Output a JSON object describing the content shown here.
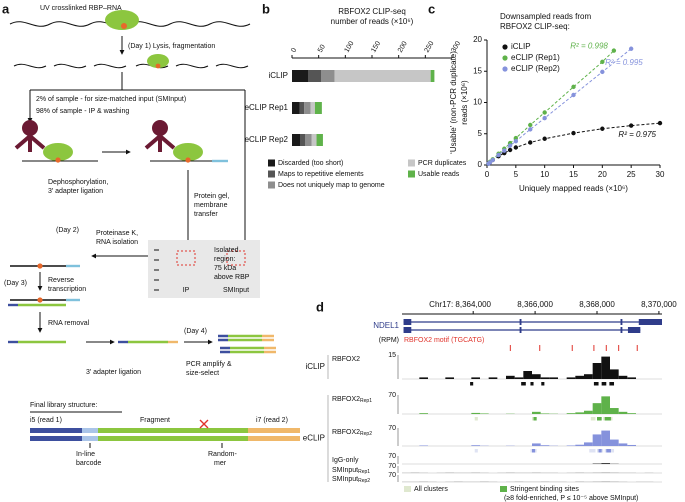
{
  "labels": {
    "a": "a",
    "b": "b",
    "c": "c",
    "d": "d"
  },
  "panel_a": {
    "uv": "UV crosslinked RBP–RNA",
    "day1": "(Day 1) Lysis, fragmentation",
    "sminput_split": "2% of sample - for size-matched input (SMInput)",
    "ip_split": "98% of sample - IP & washing",
    "dephos": [
      "Dephosphorylation,",
      "3′ adapter ligation"
    ],
    "gel": [
      "Protein gel,",
      "membrane",
      "transfer"
    ],
    "day2": "(Day 2)",
    "protk": [
      "Proteinase K,",
      "RNA isolation"
    ],
    "isolated": [
      "Isolated",
      "region:",
      "75 kDa",
      "above RBP"
    ],
    "lane_ip": "IP",
    "lane_sm": "SMInput",
    "day3": "(Day 3)",
    "rt": [
      "Reverse",
      "transcription"
    ],
    "rna_removal": "RNA removal",
    "ligation": "3′ adapter ligation",
    "day4": "(Day 4)",
    "pcr": [
      "PCR amplify &",
      "size-select"
    ],
    "final": "Final library structure:",
    "i5": "i5 (read 1)",
    "fragment": "Fragment",
    "i7": "i7 (read 2)",
    "barcode": [
      "In-line",
      "barcode"
    ],
    "randommer": [
      "Random-",
      "mer"
    ]
  },
  "chart_data": [
    {
      "type": "bar",
      "orientation": "horizontal",
      "stacked": true,
      "title": "RBFOX2 CLIP-seq",
      "subtitle": "number of reads (×10⁶)",
      "categories": [
        "iCLIP",
        "eCLIP Rep1",
        "eCLIP Rep2"
      ],
      "series": [
        {
          "name": "Discarded (too short)",
          "color": "#1a1a1a",
          "values": [
            30,
            14,
            15
          ]
        },
        {
          "name": "Maps to repetitive elements",
          "color": "#555555",
          "values": [
            25,
            9,
            10
          ]
        },
        {
          "name": "Does not uniquely map to genome",
          "color": "#8e8e8e",
          "values": [
            25,
            12,
            12
          ]
        },
        {
          "name": "PCR duplicates",
          "color": "#c6c6c6",
          "values": [
            180,
            8,
            9
          ]
        },
        {
          "name": "Usable reads",
          "color": "#5fb24a",
          "values": [
            7,
            13,
            12
          ]
        }
      ],
      "xlim": [
        0,
        300
      ],
      "xticks": [
        0,
        50,
        100,
        150,
        200,
        250,
        300
      ]
    },
    {
      "type": "scatter",
      "title": [
        "Downsampled reads from",
        "RBFOX2 CLIP-seq:"
      ],
      "xlabel": "Uniquely mapped reads (×10⁶)",
      "ylabel": [
        "‘Usable’ (non-PCR duplicate)",
        "reads (×10⁶)"
      ],
      "xlim": [
        0,
        30
      ],
      "xticks": [
        0,
        5,
        10,
        15,
        20,
        25,
        30
      ],
      "ylim": [
        0,
        20
      ],
      "yticks": [
        0,
        5,
        10,
        15,
        20
      ],
      "series": [
        {
          "name": "iCLIP",
          "color": "#111111",
          "fit_label": "R² = 0.975",
          "x": [
            0.25,
            0.5,
            1,
            2,
            3,
            4,
            5,
            7.5,
            10,
            15,
            20,
            25,
            30
          ],
          "values": [
            0.2,
            0.4,
            0.8,
            1.4,
            1.9,
            2.4,
            2.8,
            3.6,
            4.2,
            5.1,
            5.8,
            6.3,
            6.7
          ]
        },
        {
          "name": "eCLIP (Rep1)",
          "color": "#5fb24a",
          "fit_label": "R² = 0.998",
          "x": [
            0.25,
            0.5,
            1,
            2,
            3,
            4,
            5,
            7.5,
            10,
            15,
            20,
            22
          ],
          "values": [
            0.2,
            0.5,
            0.9,
            1.8,
            2.6,
            3.5,
            4.3,
            6.4,
            8.4,
            12.5,
            16.5,
            18.3
          ]
        },
        {
          "name": "eCLIP (Rep2)",
          "color": "#8592dc",
          "fit_label": "R² = 0.995",
          "x": [
            0.25,
            0.5,
            1,
            2,
            3,
            4,
            5,
            7.5,
            10,
            15,
            20,
            25
          ],
          "values": [
            0.2,
            0.4,
            0.8,
            1.6,
            2.3,
            3.1,
            3.8,
            5.7,
            7.5,
            11.2,
            14.9,
            18.6
          ]
        }
      ]
    }
  ],
  "panel_d": {
    "chrom": "Chr17:",
    "xlim": [
      8361700,
      8370100
    ],
    "xticks": [
      {
        "value": 8364000,
        "label": "8,364,000"
      },
      {
        "value": 8366000,
        "label": "8,366,000"
      },
      {
        "value": 8368000,
        "label": "8,368,000"
      },
      {
        "value": 8370000,
        "label": "8,370,000"
      }
    ],
    "gene": {
      "name": "NDEL1",
      "transcripts": [
        {
          "span": [
            8361750,
            8370100
          ],
          "exons": [
            [
              8361750,
              8362000
            ],
            [
              8365500,
              8365560
            ],
            [
              8368760,
              8368820
            ],
            [
              8369350,
              8370100
            ]
          ]
        },
        {
          "span": [
            8361750,
            8369400
          ],
          "exons": [
            [
              8361750,
              8362000
            ],
            [
              8365500,
              8365560
            ],
            [
              8368760,
              8368820
            ],
            [
              8369000,
              8369400
            ]
          ]
        }
      ]
    },
    "rpm_label": "(RPM)",
    "motif_label": "RBFOX2 motif (TGCATG)",
    "motif_color": "#e0342c",
    "motifs": [
      8365200,
      8366150,
      8367200,
      8367900,
      8368300,
      8368700,
      8369300
    ],
    "bins": [
      8361700,
      8361980,
      8362260,
      8362540,
      8362820,
      8363100,
      8363380,
      8363660,
      8363940,
      8364220,
      8364500,
      8364780,
      8365060,
      8365340,
      8365620,
      8365900,
      8366180,
      8366460,
      8366740,
      8367020,
      8367300,
      8367580,
      8367860,
      8368140,
      8368420,
      8368700,
      8368980,
      8369260,
      8369540,
      8369820,
      8370100
    ],
    "groups": [
      {
        "label": "iCLIP",
        "tracks": [
          {
            "name": "RBFOX2",
            "ymax": 15,
            "color": "#111111",
            "cluster_color": "#111111",
            "coverage": [
              0,
              0,
              1,
              0,
              0,
              1,
              0,
              0,
              1,
              0,
              1,
              0,
              2,
              1,
              5,
              3,
              1,
              1,
              0,
              1,
              2,
              3,
              10,
              14,
              6,
              2,
              1,
              0,
              0,
              0
            ],
            "clusters": [
              [
                8363900,
                8364000
              ],
              [
                8365550,
                8365700
              ],
              [
                8365850,
                8365950
              ],
              [
                8366200,
                8366300
              ],
              [
                8367900,
                8368050
              ],
              [
                8368150,
                8368300
              ],
              [
                8368400,
                8368550
              ]
            ]
          }
        ]
      },
      {
        "label": "eCLIP",
        "tracks": [
          {
            "name": "RBFOX2",
            "sub": "Rep1",
            "ymax": 70,
            "color": "#5fb24a",
            "cluster_color": "#dfe8cf",
            "stringent_color": "#5fb24a",
            "coverage": [
              0,
              0,
              3,
              0,
              0,
              0,
              0,
              0,
              4,
              2,
              0,
              0,
              1,
              0,
              0,
              8,
              2,
              1,
              0,
              3,
              6,
              12,
              40,
              65,
              22,
              8,
              3,
              0,
              0,
              0
            ],
            "clusters": [
              [
                8364050,
                8364150
              ],
              [
                8365900,
                8366050
              ],
              [
                8367800,
                8367950
              ],
              [
                8368000,
                8368150
              ],
              [
                8368200,
                8368500
              ]
            ],
            "stringent": [
              [
                8365950,
                8366050
              ],
              [
                8368000,
                8368150
              ],
              [
                8368250,
                8368450
              ]
            ]
          },
          {
            "name": "RBFOX2",
            "sub": "Rep2",
            "ymax": 70,
            "color": "#8592dc",
            "cluster_color": "#dfe3f3",
            "stringent_color": "#8592dc",
            "coverage": [
              0,
              0,
              2,
              0,
              0,
              0,
              0,
              0,
              3,
              1,
              0,
              0,
              1,
              0,
              0,
              10,
              3,
              1,
              0,
              2,
              5,
              14,
              45,
              60,
              25,
              10,
              4,
              0,
              0,
              0
            ],
            "clusters": [
              [
                8364050,
                8364150
              ],
              [
                8365850,
                8366050
              ],
              [
                8367750,
                8367950
              ],
              [
                8368000,
                8368200
              ],
              [
                8368250,
                8368550
              ]
            ],
            "stringent": [
              [
                8365900,
                8366000
              ],
              [
                8368050,
                8368150
              ],
              [
                8368300,
                8368450
              ]
            ]
          },
          {
            "name": "IgG-only",
            "ymax": 70,
            "color": "#333333",
            "coverage": [
              0,
              0,
              0,
              0,
              0,
              0,
              0,
              0,
              0,
              0,
              0,
              0,
              0,
              0,
              0,
              0,
              0,
              0,
              0,
              0,
              0,
              0,
              4,
              8,
              2,
              0,
              0,
              0,
              0,
              0
            ]
          },
          {
            "name": "SMInput",
            "sub": "Rep1",
            "ymax": 70,
            "color": "#666666",
            "coverage": [
              1,
              2,
              1,
              0,
              1,
              2,
              1,
              1,
              2,
              1,
              0,
              1,
              2,
              1,
              1,
              2,
              1,
              1,
              0,
              1,
              2,
              1,
              2,
              3,
              2,
              1,
              1,
              0,
              1,
              0
            ]
          },
          {
            "name": "SMInput",
            "sub": "Rep2",
            "ymax": 70,
            "color": "#666666",
            "coverage": [
              1,
              1,
              2,
              1,
              0,
              1,
              2,
              1,
              1,
              2,
              1,
              0,
              1,
              2,
              1,
              1,
              2,
              1,
              1,
              0,
              2,
              1,
              2,
              3,
              2,
              1,
              0,
              1,
              1,
              0
            ]
          }
        ]
      }
    ],
    "legend": {
      "all": "All clusters",
      "all_color": "#dfe8cf",
      "stringent": "Stringent binding sites",
      "stringent_color": "#5fb24a",
      "stringent_note": "(≥8 fold-enriched, P ≤ 10⁻⁵ above SMInput)"
    }
  }
}
